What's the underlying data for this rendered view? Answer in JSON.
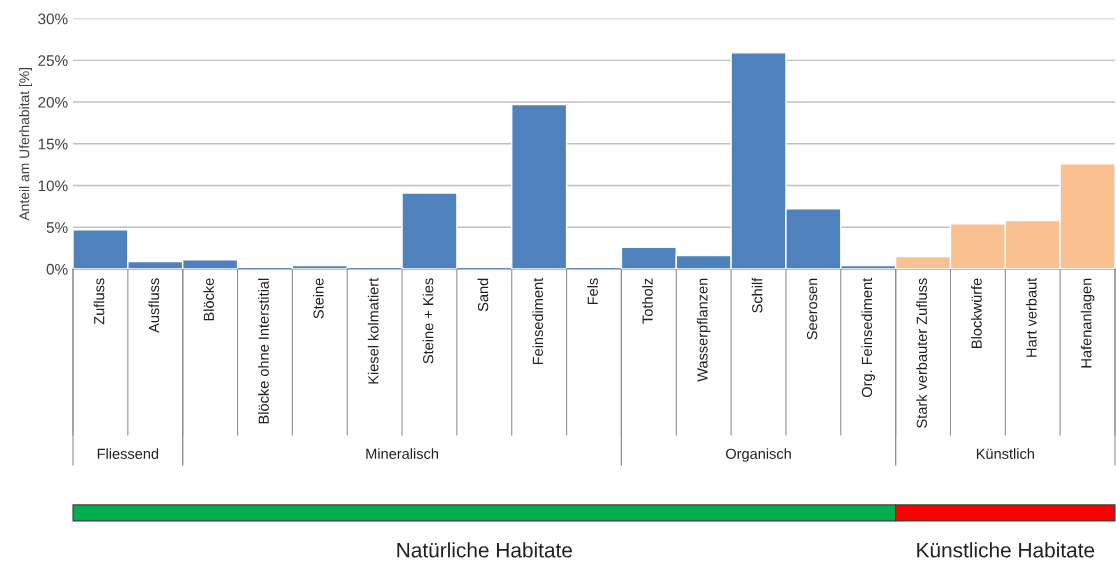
{
  "chart_data": {
    "type": "bar",
    "ylabel": "Anteil am Uferhabitat [%]",
    "categories": [
      "Zufluss",
      "Ausfluss",
      "Blöcke",
      "Blöcke ohne Interstitial",
      "Steine",
      "Kiesel kolmatiert",
      "Steine + Kies",
      "Sand",
      "Feinsediment",
      "Fels",
      "Totholz",
      "Wasserpflanzen",
      "Schilf",
      "Seerosen",
      "Org. Feinsediment",
      "Stark verbauter Zufluss",
      "Blockwürfe",
      "Hart verbaut",
      "Hafenanlagen"
    ],
    "values": [
      4.7,
      0.9,
      1.1,
      0,
      0.4,
      0,
      9.1,
      0,
      19.7,
      0,
      2.6,
      1.6,
      25.9,
      7.2,
      0.4,
      1.5,
      5.4,
      5.8,
      12.6
    ],
    "colors": [
      "#4f81bd",
      "#4f81bd",
      "#4f81bd",
      "#4f81bd",
      "#4f81bd",
      "#4f81bd",
      "#4f81bd",
      "#4f81bd",
      "#4f81bd",
      "#4f81bd",
      "#4f81bd",
      "#4f81bd",
      "#4f81bd",
      "#4f81bd",
      "#4f81bd",
      "#fac090",
      "#fac090",
      "#fac090",
      "#fac090"
    ],
    "ylim": [
      0,
      30
    ],
    "yticks": [
      {
        "value": 0,
        "label": "0%"
      },
      {
        "value": 5,
        "label": "5%"
      },
      {
        "value": 10,
        "label": "10%"
      },
      {
        "value": 15,
        "label": "15%"
      },
      {
        "value": 20,
        "label": "20%"
      },
      {
        "value": 25,
        "label": "25%"
      },
      {
        "value": 30,
        "label": "30%"
      }
    ],
    "grid": "y",
    "annotations": [
      "Fliessend",
      "Mineralisch",
      "Organisch",
      "Künstlich",
      "Natürliche Habitate",
      "Künstliche Habitate"
    ]
  }
}
